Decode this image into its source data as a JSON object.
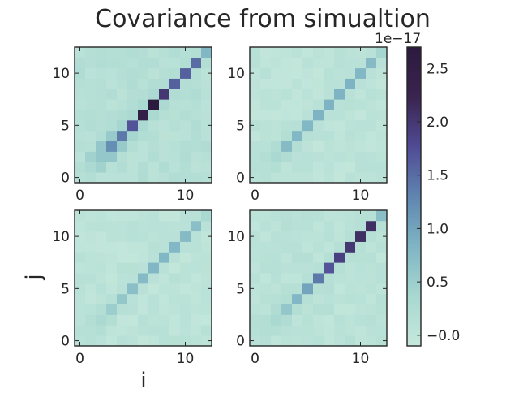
{
  "chart_data": {
    "type": "heatmap",
    "title": "Covariance from simualtion",
    "xlabel": "i",
    "ylabel": "j",
    "colorbar": {
      "offset_label": "1e−17",
      "min": -0.1,
      "max": 2.7,
      "ticks": [
        -0.0,
        0.5,
        1.0,
        1.5,
        2.0,
        2.5
      ],
      "tick_labels": [
        "−0.0",
        "0.5",
        "1.0",
        "1.5",
        "2.0",
        "2.5"
      ],
      "colors": [
        "#c6e8dc",
        "#a8d8d0",
        "#7fb5c4",
        "#5f85b0",
        "#504b94",
        "#3a2450",
        "#2c1a3e"
      ]
    },
    "grid": false,
    "matrix_size": 13,
    "xticks": [
      0,
      10
    ],
    "yticks": [
      0,
      5,
      10
    ],
    "panels": [
      {
        "position": "top-left",
        "diagonal": [
          0.15,
          0.3,
          0.6,
          1.2,
          1.4,
          1.7,
          2.5,
          2.7,
          2.0,
          1.6,
          1.6,
          1.5,
          0.8
        ],
        "offdiag1": [
          0.2,
          0.45,
          0.6,
          0.55,
          0.4,
          0.3,
          0.35,
          0.3,
          0.25,
          0.2,
          0.2,
          0.2
        ],
        "background": 0.15
      },
      {
        "position": "top-right",
        "diagonal": [
          0.1,
          0.15,
          0.35,
          0.75,
          0.8,
          0.8,
          0.85,
          0.85,
          0.85,
          0.85,
          0.8,
          0.75,
          0.4
        ],
        "offdiag1": [
          0.15,
          0.2,
          0.25,
          0.2,
          0.15,
          0.1,
          0.1,
          0.1,
          0.1,
          0.1,
          0.1,
          0.1
        ],
        "background": 0.05
      },
      {
        "position": "bottom-left",
        "diagonal": [
          0.1,
          0.15,
          0.3,
          0.5,
          0.6,
          0.7,
          0.75,
          0.8,
          0.8,
          0.8,
          0.75,
          0.7,
          0.35
        ],
        "offdiag1": [
          0.15,
          0.2,
          0.2,
          0.15,
          0.1,
          0.1,
          0.1,
          0.1,
          0.1,
          0.1,
          0.1,
          0.1
        ],
        "background": 0.05
      },
      {
        "position": "bottom-right",
        "diagonal": [
          0.1,
          0.2,
          0.35,
          0.6,
          0.8,
          1.0,
          1.4,
          1.7,
          1.9,
          2.0,
          2.1,
          2.1,
          0.7
        ],
        "offdiag1": [
          0.15,
          0.2,
          0.25,
          0.2,
          0.15,
          0.15,
          0.15,
          0.15,
          0.15,
          0.15,
          0.15,
          0.15
        ],
        "background": 0.08
      }
    ]
  }
}
